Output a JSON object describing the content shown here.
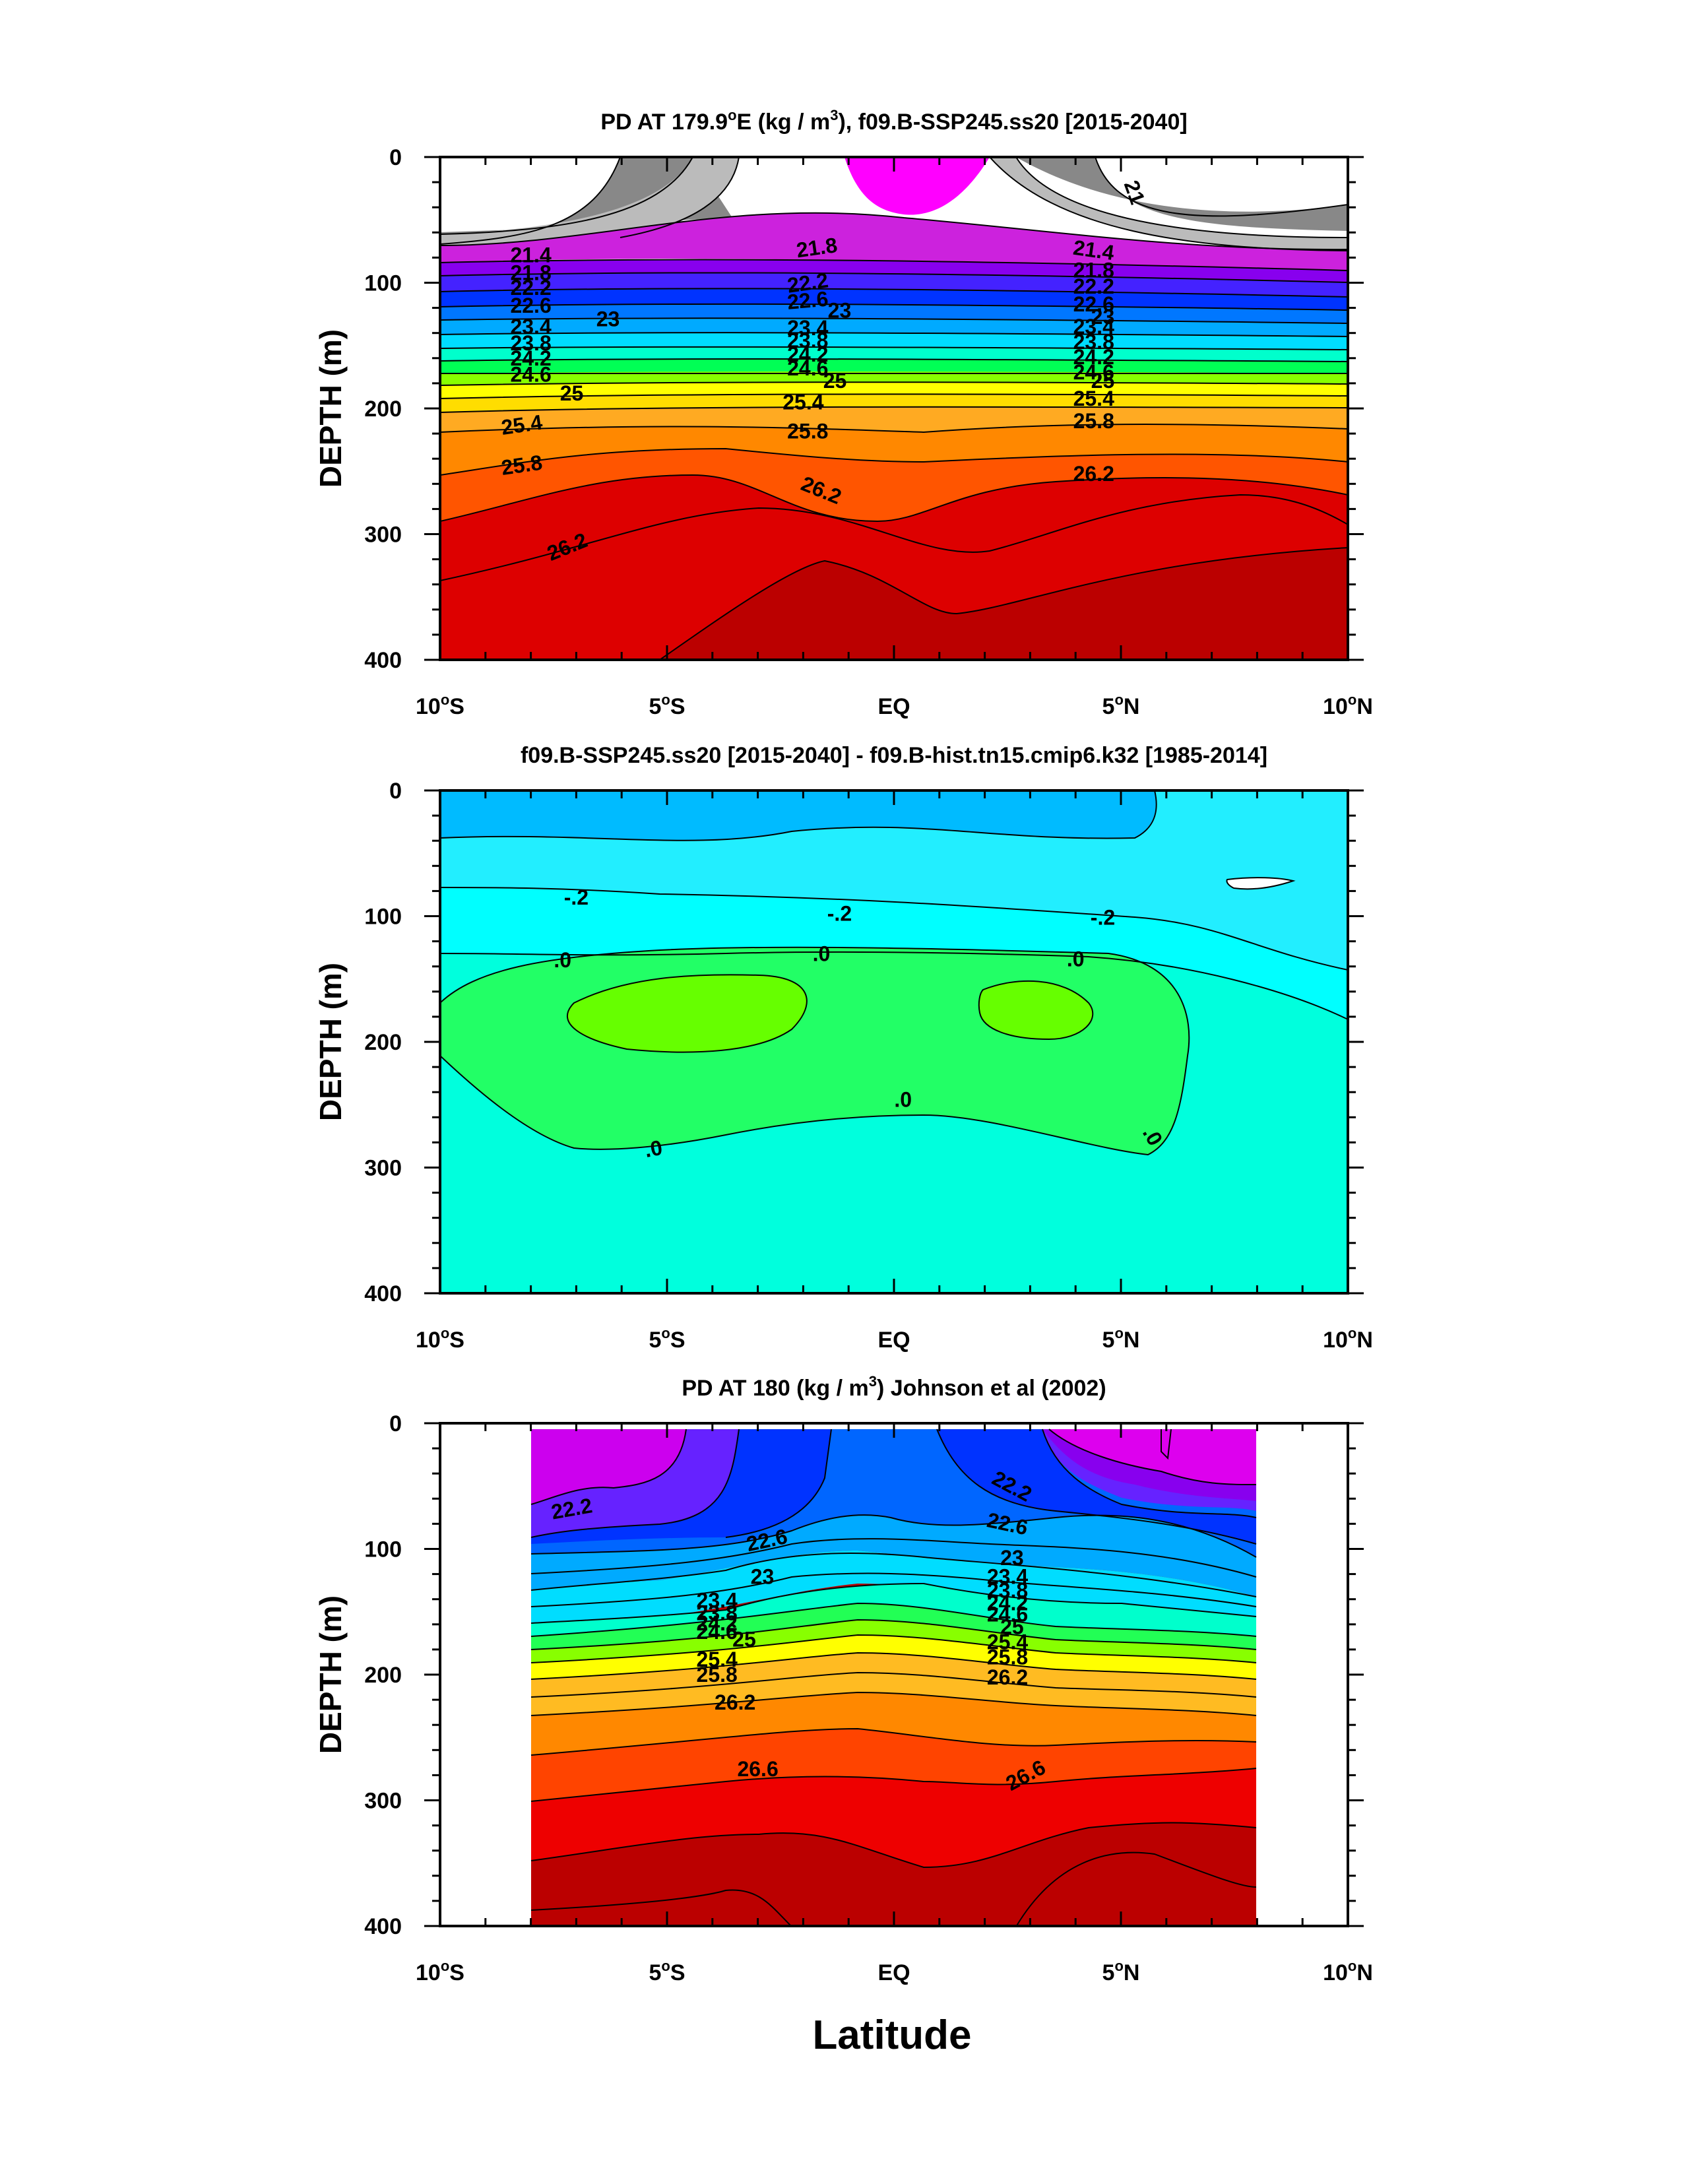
{
  "x_axis_label": "Latitude",
  "chart_data": [
    {
      "type": "contour",
      "title_parts": [
        "PD AT 179.9",
        "o",
        "E (kg / m",
        "3",
        "), f09.B-SSP245.ss20 [2015-2040]"
      ],
      "xlabel": "",
      "ylabel": "DEPTH (m)",
      "xlim": [
        -10,
        10
      ],
      "ylim": [
        400,
        0
      ],
      "x_ticks": [
        {
          "value": -10,
          "label": "10",
          "sup": "o",
          "suffix": "S"
        },
        {
          "value": -5,
          "label": "5",
          "sup": "o",
          "suffix": "S"
        },
        {
          "value": 0,
          "label": "EQ",
          "sup": "",
          "suffix": ""
        },
        {
          "value": 5,
          "label": "5",
          "sup": "o",
          "suffix": "N"
        },
        {
          "value": 10,
          "label": "10",
          "sup": "o",
          "suffix": "N"
        }
      ],
      "y_ticks": [
        0,
        100,
        200,
        300,
        400
      ],
      "contour_labels": [
        {
          "text": "21",
          "lat": 5.3,
          "depth": 28,
          "rot": 70
        },
        {
          "text": "21.4",
          "lat": -8.0,
          "depth": 78,
          "rot": 0
        },
        {
          "text": "21.8",
          "lat": -1.7,
          "depth": 72,
          "rot": -8
        },
        {
          "text": "21.4",
          "lat": 4.4,
          "depth": 74,
          "rot": 8
        },
        {
          "text": "21.8",
          "lat": -8.0,
          "depth": 92,
          "rot": 0
        },
        {
          "text": "21.8",
          "lat": 4.4,
          "depth": 90,
          "rot": 0
        },
        {
          "text": "22.2",
          "lat": -8.0,
          "depth": 104,
          "rot": 0
        },
        {
          "text": "22.2",
          "lat": -1.9,
          "depth": 100,
          "rot": -8
        },
        {
          "text": "22.2",
          "lat": 4.4,
          "depth": 103,
          "rot": 0
        },
        {
          "text": "22.6",
          "lat": -8.0,
          "depth": 118,
          "rot": 0
        },
        {
          "text": "22.6",
          "lat": -1.9,
          "depth": 114,
          "rot": -5
        },
        {
          "text": "22.6",
          "lat": 4.4,
          "depth": 117,
          "rot": 0
        },
        {
          "text": "23",
          "lat": -6.3,
          "depth": 129,
          "rot": 0
        },
        {
          "text": "23",
          "lat": -1.2,
          "depth": 122,
          "rot": 0
        },
        {
          "text": "23",
          "lat": 4.6,
          "depth": 127,
          "rot": 0
        },
        {
          "text": "23.4",
          "lat": -8.0,
          "depth": 135,
          "rot": 0
        },
        {
          "text": "23.4",
          "lat": -1.9,
          "depth": 136,
          "rot": 0
        },
        {
          "text": "23.4",
          "lat": 4.4,
          "depth": 135,
          "rot": 0
        },
        {
          "text": "23.8",
          "lat": -8.0,
          "depth": 148,
          "rot": 0
        },
        {
          "text": "23.8",
          "lat": -1.9,
          "depth": 146,
          "rot": 0
        },
        {
          "text": "23.8",
          "lat": 4.4,
          "depth": 147,
          "rot": 0
        },
        {
          "text": "24.2",
          "lat": -8.0,
          "depth": 160,
          "rot": 0
        },
        {
          "text": "24.2",
          "lat": -1.9,
          "depth": 157,
          "rot": 0
        },
        {
          "text": "24.2",
          "lat": 4.4,
          "depth": 159,
          "rot": 0
        },
        {
          "text": "24.6",
          "lat": -8.0,
          "depth": 173,
          "rot": 0
        },
        {
          "text": "24.6",
          "lat": -1.9,
          "depth": 168,
          "rot": 0
        },
        {
          "text": "24.6",
          "lat": 4.4,
          "depth": 171,
          "rot": 0
        },
        {
          "text": "25",
          "lat": -7.1,
          "depth": 188,
          "rot": 0
        },
        {
          "text": "25",
          "lat": -1.3,
          "depth": 178,
          "rot": 0
        },
        {
          "text": "25",
          "lat": 4.6,
          "depth": 178,
          "rot": 0
        },
        {
          "text": "25.4",
          "lat": -8.2,
          "depth": 213,
          "rot": -8
        },
        {
          "text": "25.4",
          "lat": -2.0,
          "depth": 195,
          "rot": 0
        },
        {
          "text": "25.4",
          "lat": 4.4,
          "depth": 192,
          "rot": 0
        },
        {
          "text": "25.8",
          "lat": -8.2,
          "depth": 245,
          "rot": -8
        },
        {
          "text": "25.8",
          "lat": -1.9,
          "depth": 218,
          "rot": 0
        },
        {
          "text": "25.8",
          "lat": 4.4,
          "depth": 210,
          "rot": 0
        },
        {
          "text": "26.2",
          "lat": -7.2,
          "depth": 310,
          "rot": -22
        },
        {
          "text": "26.2",
          "lat": -1.6,
          "depth": 265,
          "rot": 22
        },
        {
          "text": "26.2",
          "lat": 4.4,
          "depth": 252,
          "rot": 0
        }
      ]
    },
    {
      "type": "contour",
      "title_parts": [
        "f09.B-SSP245.ss20 [2015-2040] - f09.B-hist.tn15.cmip6.k32 [1985-2014]"
      ],
      "xlabel": "",
      "ylabel": "DEPTH (m)",
      "xlim": [
        -10,
        10
      ],
      "ylim": [
        400,
        0
      ],
      "x_ticks": [
        {
          "value": -10,
          "label": "10",
          "sup": "o",
          "suffix": "S"
        },
        {
          "value": -5,
          "label": "5",
          "sup": "o",
          "suffix": "S"
        },
        {
          "value": 0,
          "label": "EQ",
          "sup": "",
          "suffix": ""
        },
        {
          "value": 5,
          "label": "5",
          "sup": "o",
          "suffix": "N"
        },
        {
          "value": 10,
          "label": "10",
          "sup": "o",
          "suffix": "N"
        }
      ],
      "y_ticks": [
        0,
        100,
        200,
        300,
        400
      ],
      "contour_labels": [
        {
          "text": "-.2",
          "lat": -7.0,
          "depth": 85,
          "rot": 0
        },
        {
          "text": "-.2",
          "lat": -1.2,
          "depth": 98,
          "rot": 0
        },
        {
          "text": "-.2",
          "lat": 4.6,
          "depth": 101,
          "rot": 0
        },
        {
          "text": ".0",
          "lat": -7.3,
          "depth": 135,
          "rot": 0
        },
        {
          "text": ".0",
          "lat": -1.6,
          "depth": 130,
          "rot": 0
        },
        {
          "text": ".0",
          "lat": 4.0,
          "depth": 134,
          "rot": 0
        },
        {
          "text": ".0",
          "lat": 0.2,
          "depth": 246,
          "rot": 0
        },
        {
          "text": ".0",
          "lat": -5.3,
          "depth": 285,
          "rot": -10
        },
        {
          "text": ".0",
          "lat": 5.7,
          "depth": 275,
          "rot": 60
        }
      ]
    },
    {
      "type": "contour",
      "title_parts": [
        "PD AT 180 (kg / m",
        "3",
        ") Johnson et al (2002)"
      ],
      "xlabel": "",
      "ylabel": "DEPTH (m)",
      "xlim": [
        -10,
        10
      ],
      "ylim": [
        400,
        0
      ],
      "x_ticks": [
        {
          "value": -10,
          "label": "10",
          "sup": "o",
          "suffix": "S"
        },
        {
          "value": -5,
          "label": "5",
          "sup": "o",
          "suffix": "S"
        },
        {
          "value": 0,
          "label": "EQ",
          "sup": "",
          "suffix": ""
        },
        {
          "value": 5,
          "label": "5",
          "sup": "o",
          "suffix": "N"
        },
        {
          "value": 10,
          "label": "10",
          "sup": "o",
          "suffix": "N"
        }
      ],
      "y_ticks": [
        0,
        100,
        200,
        300,
        400
      ],
      "contour_labels": [
        {
          "text": "22.2",
          "lat": 2.6,
          "depth": 50,
          "rot": 28
        },
        {
          "text": "22.2",
          "lat": -7.1,
          "depth": 68,
          "rot": -10
        },
        {
          "text": "22.6",
          "lat": 2.5,
          "depth": 80,
          "rot": 12
        },
        {
          "text": "22.6",
          "lat": -2.8,
          "depth": 93,
          "rot": -12
        },
        {
          "text": "23",
          "lat": 2.6,
          "depth": 107,
          "rot": 0
        },
        {
          "text": "23",
          "lat": -2.9,
          "depth": 122,
          "rot": 0
        },
        {
          "text": "23.4",
          "lat": 2.5,
          "depth": 122,
          "rot": 0
        },
        {
          "text": "23.4",
          "lat": -3.9,
          "depth": 141,
          "rot": 0
        },
        {
          "text": "23.8",
          "lat": 2.5,
          "depth": 133,
          "rot": 0
        },
        {
          "text": "23.8",
          "lat": -3.9,
          "depth": 151,
          "rot": 0
        },
        {
          "text": "24.2",
          "lat": 2.5,
          "depth": 143,
          "rot": 0
        },
        {
          "text": "24.2",
          "lat": -3.9,
          "depth": 159,
          "rot": 0
        },
        {
          "text": "24.6",
          "lat": 2.5,
          "depth": 152,
          "rot": 0
        },
        {
          "text": "24.6",
          "lat": -3.9,
          "depth": 166,
          "rot": 0
        },
        {
          "text": "25",
          "lat": 2.6,
          "depth": 162,
          "rot": 0
        },
        {
          "text": "25",
          "lat": -3.3,
          "depth": 172,
          "rot": 0
        },
        {
          "text": "25.4",
          "lat": 2.5,
          "depth": 174,
          "rot": 0
        },
        {
          "text": "25.4",
          "lat": -3.9,
          "depth": 188,
          "rot": 0
        },
        {
          "text": "25.8",
          "lat": 2.5,
          "depth": 186,
          "rot": 0
        },
        {
          "text": "25.8",
          "lat": -3.9,
          "depth": 200,
          "rot": 0
        },
        {
          "text": "26.2",
          "lat": 2.5,
          "depth": 202,
          "rot": 0
        },
        {
          "text": "26.2",
          "lat": -3.5,
          "depth": 222,
          "rot": 0
        },
        {
          "text": "26.6",
          "lat": -3.0,
          "depth": 275,
          "rot": 0
        },
        {
          "text": "26.6",
          "lat": 2.9,
          "depth": 280,
          "rot": -28
        }
      ]
    }
  ]
}
